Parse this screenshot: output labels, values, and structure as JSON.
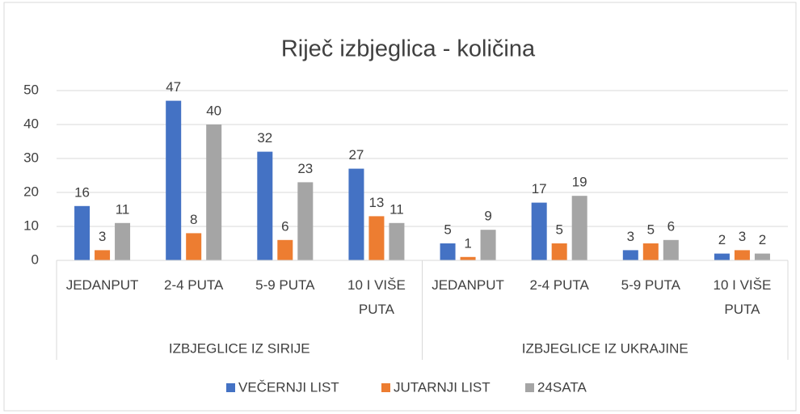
{
  "chart_data": {
    "type": "bar",
    "title": "Riječ izbjeglica - količina",
    "groups": [
      {
        "label": "IZBJEGLICE IZ SIRIJE",
        "categories": [
          "JEDANPUT",
          "2-4 PUTA",
          "5-9 PUTA",
          "10 I VIŠE PUTA"
        ]
      },
      {
        "label": "IZBJEGLICE IZ UKRAJINE",
        "categories": [
          "JEDANPUT",
          "2-4 PUTA",
          "5-9 PUTA",
          "10 I VIŠE PUTA"
        ]
      }
    ],
    "series": [
      {
        "name": "VEČERNJI LIST",
        "color": "#4472c4",
        "values": [
          16,
          47,
          32,
          27,
          5,
          17,
          3,
          2
        ]
      },
      {
        "name": "JUTARNJI LIST",
        "color": "#ed7d31",
        "values": [
          3,
          8,
          6,
          13,
          1,
          5,
          5,
          3
        ]
      },
      {
        "name": "24SATA",
        "color": "#a5a5a5",
        "values": [
          11,
          40,
          23,
          11,
          9,
          19,
          6,
          2
        ]
      }
    ],
    "ylim": [
      0,
      50
    ],
    "yticks": [
      0,
      10,
      20,
      30,
      40,
      50
    ],
    "grid": true,
    "legend": "bottom"
  }
}
